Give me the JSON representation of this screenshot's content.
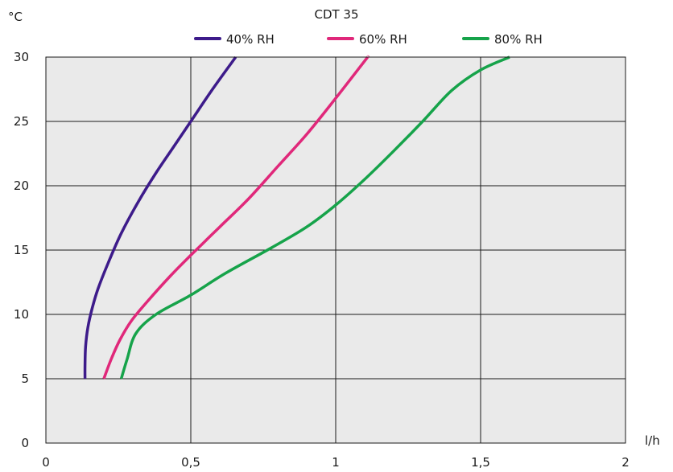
{
  "chart_data": {
    "type": "line",
    "title": "CDT 35",
    "xlabel": "l/h",
    "ylabel": "°C",
    "xlim": [
      0,
      2
    ],
    "ylim": [
      0,
      30
    ],
    "x_ticks": [
      0,
      0.5,
      1,
      1.5,
      2
    ],
    "x_tick_labels": [
      "0",
      "0,5",
      "1",
      "1,5",
      "2"
    ],
    "y_ticks": [
      0,
      5,
      10,
      15,
      20,
      25,
      30
    ],
    "y_tick_labels": [
      "0",
      "5",
      "10",
      "15",
      "20",
      "25",
      "30"
    ],
    "grid": true,
    "plot_background": "#eaeaea",
    "legend_position": "top",
    "series": [
      {
        "name": "40% RH",
        "color": "#3d1b8a",
        "points": [
          [
            0.135,
            5
          ],
          [
            0.135,
            6
          ],
          [
            0.137,
            7.5
          ],
          [
            0.145,
            9
          ],
          [
            0.16,
            10.5
          ],
          [
            0.18,
            12
          ],
          [
            0.215,
            14
          ],
          [
            0.26,
            16.3
          ],
          [
            0.32,
            18.8
          ],
          [
            0.38,
            21
          ],
          [
            0.44,
            23
          ],
          [
            0.5,
            25
          ],
          [
            0.575,
            27.5
          ],
          [
            0.655,
            30
          ]
        ]
      },
      {
        "name": "60% RH",
        "color": "#e0287a",
        "points": [
          [
            0.2,
            5
          ],
          [
            0.225,
            6.5
          ],
          [
            0.255,
            8
          ],
          [
            0.295,
            9.5
          ],
          [
            0.35,
            11
          ],
          [
            0.43,
            13
          ],
          [
            0.5,
            14.6
          ],
          [
            0.6,
            16.8
          ],
          [
            0.7,
            19
          ],
          [
            0.8,
            21.5
          ],
          [
            0.9,
            24
          ],
          [
            1.0,
            26.8
          ],
          [
            1.1,
            29.7
          ],
          [
            1.11,
            30
          ]
        ]
      },
      {
        "name": "80% RH",
        "color": "#16a34a",
        "points": [
          [
            0.26,
            5
          ],
          [
            0.28,
            6.5
          ],
          [
            0.31,
            8.5
          ],
          [
            0.38,
            10
          ],
          [
            0.5,
            11.5
          ],
          [
            0.62,
            13.2
          ],
          [
            0.78,
            15.2
          ],
          [
            0.9,
            16.8
          ],
          [
            1.0,
            18.5
          ],
          [
            1.1,
            20.5
          ],
          [
            1.2,
            22.7
          ],
          [
            1.3,
            25
          ],
          [
            1.4,
            27.4
          ],
          [
            1.5,
            29
          ],
          [
            1.6,
            30
          ]
        ]
      }
    ]
  }
}
